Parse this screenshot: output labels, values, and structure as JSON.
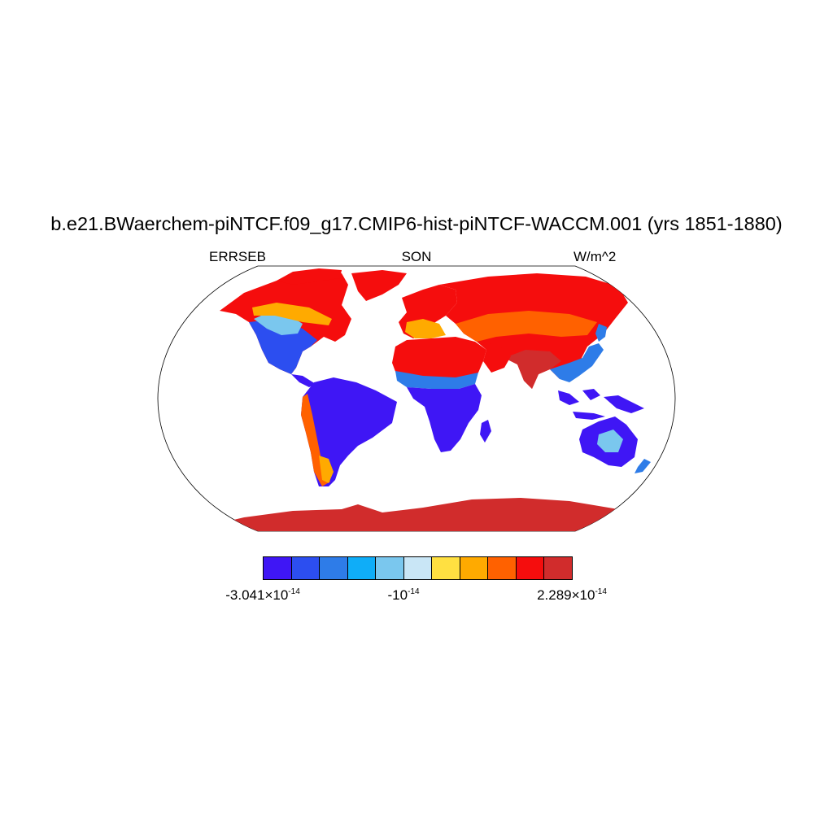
{
  "title": "b.e21.BWaerchem-piNTCF.f09_g17.CMIP6-hist-piNTCF-WACCM.001 (yrs 1851-1880)",
  "left_label": "ERRSEB",
  "center_label": "SON",
  "right_label": "W/m^2",
  "colorbar": {
    "colors": [
      "#3f16f5",
      "#2c4ef0",
      "#2e7ce8",
      "#0fadf8",
      "#7ac7ee",
      "#c9e6f6",
      "#ffe041",
      "#ffaa00",
      "#ff6100",
      "#f50d0d",
      "#d12c2c"
    ],
    "labels": [
      {
        "mantissa": "-3.041",
        "times": "×",
        "base": "10",
        "exp": "-14"
      },
      {
        "mantissa": "",
        "times": "",
        "base": "-10",
        "exp": "-14"
      },
      {
        "mantissa": "2.289",
        "times": "×",
        "base": "10",
        "exp": "-14"
      }
    ]
  },
  "map": {
    "projection": "robinson",
    "ocean_color": "#ffffff",
    "coastline_color": "#000000"
  }
}
